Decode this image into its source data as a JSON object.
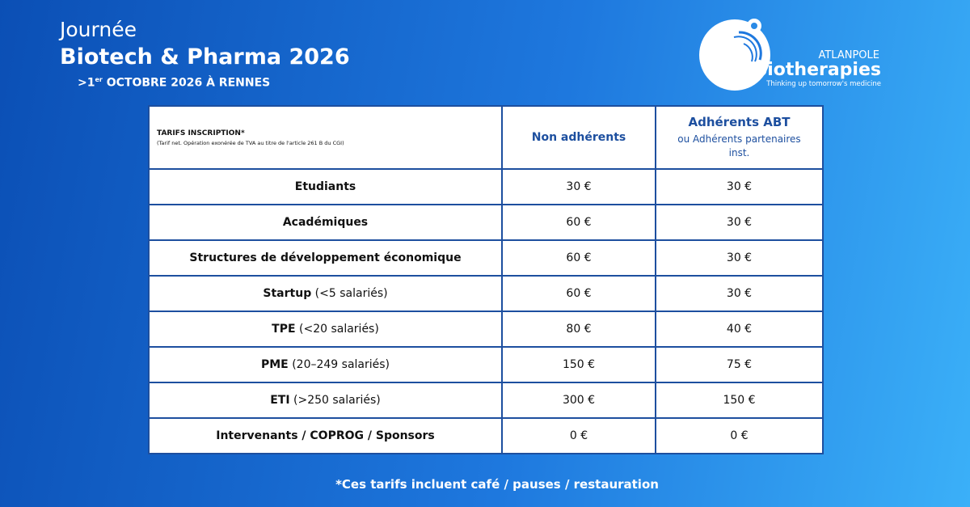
{
  "header": {
    "title_line1": "Journée",
    "title_line2": "Biotech & Pharma 2026",
    "date_prefix": ">1",
    "date_sup": "er",
    "date_rest": " OCTOBRE 2026 À RENNES"
  },
  "logo": {
    "top": "ATLANPOLE",
    "name": "biotherapies",
    "tagline": "Thinking up tomorrow's medicine"
  },
  "table": {
    "head": {
      "title": "TARIFS INSCRIPTION*",
      "note": "(Tarif net. Opération exonérée de TVA au titre de l'article 261 B du CGI)",
      "col1": "Non adhérents",
      "col2": "Adhérents ABT",
      "col2_sub": "ou Adhérents partenaires inst."
    },
    "rows": [
      {
        "label": "Etudiants",
        "price1": "30 €",
        "price2": "30 €"
      },
      {
        "label": "Académiques",
        "price1": "60 €",
        "price2": "30 €"
      },
      {
        "label": "Structures de développement économique",
        "price1": "60 €",
        "price2": "30 €"
      },
      {
        "label": "Startup",
        "detail": "(<5 salariés)",
        "price1": "60 €",
        "price2": "30 €"
      },
      {
        "label": "TPE",
        "detail": "(<20 salariés)",
        "price1": "80 €",
        "price2": "40 €"
      },
      {
        "label": "PME",
        "detail": "(20–249 salariés)",
        "price1": "150 €",
        "price2": "75 €"
      },
      {
        "label": "ETI",
        "detail": "(>250 salariés)",
        "price1": "300 €",
        "price2": "150 €"
      },
      {
        "label": "Intervenants / COPROG / Sponsors",
        "price1": "0 €",
        "price2": "0 €"
      }
    ]
  },
  "footer": {
    "note": "*Ces tarifs incluent café / pauses / restauration"
  }
}
